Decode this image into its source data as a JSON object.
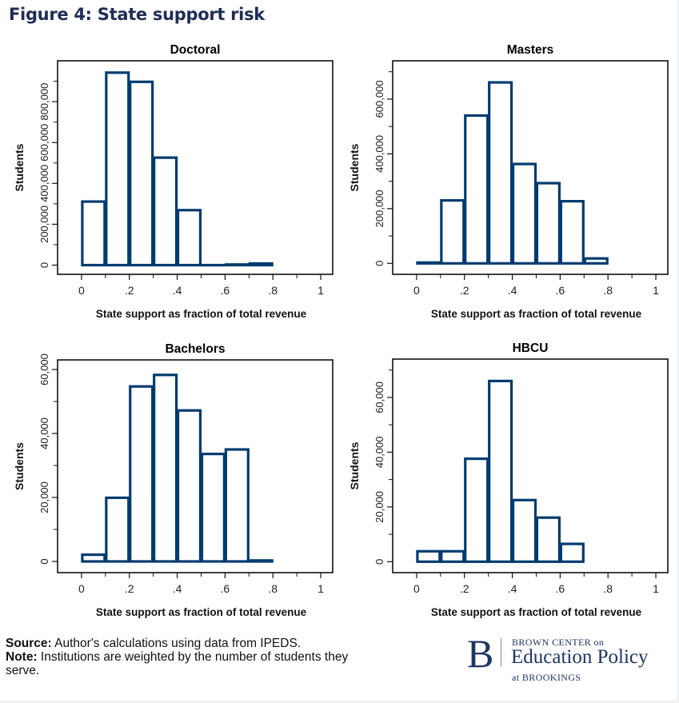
{
  "page": {
    "title": "Figure 4: State support risk",
    "footer": {
      "source_label": "Source:",
      "source_text": " Author's calculations using data from IPEDS.",
      "note_label": "Note:",
      "note_text": " Institutions are weighted by the number of students they serve."
    },
    "logo": {
      "mark": "B",
      "line1": "BROWN CENTER on",
      "line2": "Education Policy",
      "line3": "at BROOKINGS"
    }
  },
  "colors": {
    "bar_outline": "#003b6f",
    "bar_fill": "#ffffff",
    "title": "#1f2d55",
    "axis": "#111111"
  },
  "chart_data": [
    {
      "type": "bar",
      "title": "Doctoral",
      "xlabel": "State support as fraction of total revenue",
      "ylabel": "Students",
      "bin_edges": [
        0,
        0.1,
        0.2,
        0.3,
        0.4,
        0.5,
        0.6,
        0.7,
        0.8
      ],
      "values": [
        311000,
        942000,
        897000,
        526000,
        269000,
        0,
        3000,
        8000
      ],
      "xlim": [
        -0.1,
        1.05
      ],
      "ylim": [
        -45000,
        1000000
      ],
      "xticks": [
        0,
        0.2,
        0.4,
        0.6,
        0.8,
        1
      ],
      "xtick_labels": [
        "0",
        ".2",
        ".4",
        ".6",
        ".8",
        "1"
      ],
      "x_minor_ticks": [
        0.1,
        0.3,
        0.5,
        0.7,
        0.9
      ],
      "yticks": [
        0,
        200000,
        400000,
        600000,
        800000
      ],
      "ytick_labels": [
        "0",
        "200,000",
        "400,000",
        "600,000",
        "800,000"
      ],
      "y_minor_ticks": [
        100000,
        300000,
        500000,
        700000,
        900000
      ],
      "grid": false
    },
    {
      "type": "bar",
      "title": "Masters",
      "xlabel": "State support as fraction of total revenue",
      "ylabel": "Students",
      "bin_edges": [
        0,
        0.1,
        0.2,
        0.3,
        0.4,
        0.5,
        0.6,
        0.7,
        0.8
      ],
      "values": [
        3000,
        230000,
        540000,
        661000,
        363000,
        293000,
        227000,
        18000
      ],
      "xlim": [
        -0.1,
        1.05
      ],
      "ylim": [
        -40000,
        740000
      ],
      "xticks": [
        0,
        0.2,
        0.4,
        0.6,
        0.8,
        1
      ],
      "xtick_labels": [
        "0",
        ".2",
        ".4",
        ".6",
        ".8",
        "1"
      ],
      "x_minor_ticks": [
        0.1,
        0.3,
        0.5,
        0.7,
        0.9
      ],
      "yticks": [
        0,
        200000,
        400000,
        600000
      ],
      "ytick_labels": [
        "0",
        "200,000",
        "400,000",
        "600,000"
      ],
      "y_minor_ticks": [
        100000,
        300000,
        500000,
        700000
      ],
      "grid": false
    },
    {
      "type": "bar",
      "title": "Bachelors",
      "xlabel": "State support as fraction of total revenue",
      "ylabel": "Students",
      "bin_edges": [
        0,
        0.1,
        0.2,
        0.3,
        0.4,
        0.5,
        0.6,
        0.7,
        0.8
      ],
      "values": [
        2100,
        19900,
        54700,
        58300,
        47200,
        33600,
        35000,
        300
      ],
      "xlim": [
        -0.1,
        1.05
      ],
      "ylim": [
        -3500,
        63000
      ],
      "xticks": [
        0,
        0.2,
        0.4,
        0.6,
        0.8,
        1
      ],
      "xtick_labels": [
        "0",
        ".2",
        ".4",
        ".6",
        ".8",
        "1"
      ],
      "x_minor_ticks": [
        0.1,
        0.3,
        0.5,
        0.7,
        0.9
      ],
      "yticks": [
        0,
        20000,
        40000,
        60000
      ],
      "ytick_labels": [
        "0",
        "20,000",
        "40,000",
        "60,000"
      ],
      "y_minor_ticks": [
        10000,
        30000,
        50000
      ],
      "grid": false
    },
    {
      "type": "bar",
      "title": "HBCU",
      "xlabel": "State support as fraction of total revenue",
      "ylabel": "Students",
      "bin_edges": [
        0,
        0.1,
        0.2,
        0.3,
        0.4,
        0.5,
        0.6,
        0.7
      ],
      "values": [
        3800,
        3800,
        37600,
        66000,
        22500,
        16100,
        6500
      ],
      "xlim": [
        -0.1,
        1.05
      ],
      "ylim": [
        -4000,
        74000
      ],
      "xticks": [
        0,
        0.2,
        0.4,
        0.6,
        0.8,
        1
      ],
      "xtick_labels": [
        "0",
        ".2",
        ".4",
        ".6",
        ".8",
        "1"
      ],
      "x_minor_ticks": [
        0.1,
        0.3,
        0.5,
        0.7,
        0.9
      ],
      "yticks": [
        0,
        20000,
        40000,
        60000
      ],
      "ytick_labels": [
        "0",
        "20,000",
        "40,000",
        "60,000"
      ],
      "y_minor_ticks": [
        10000,
        30000,
        50000,
        70000
      ],
      "grid": false
    }
  ]
}
